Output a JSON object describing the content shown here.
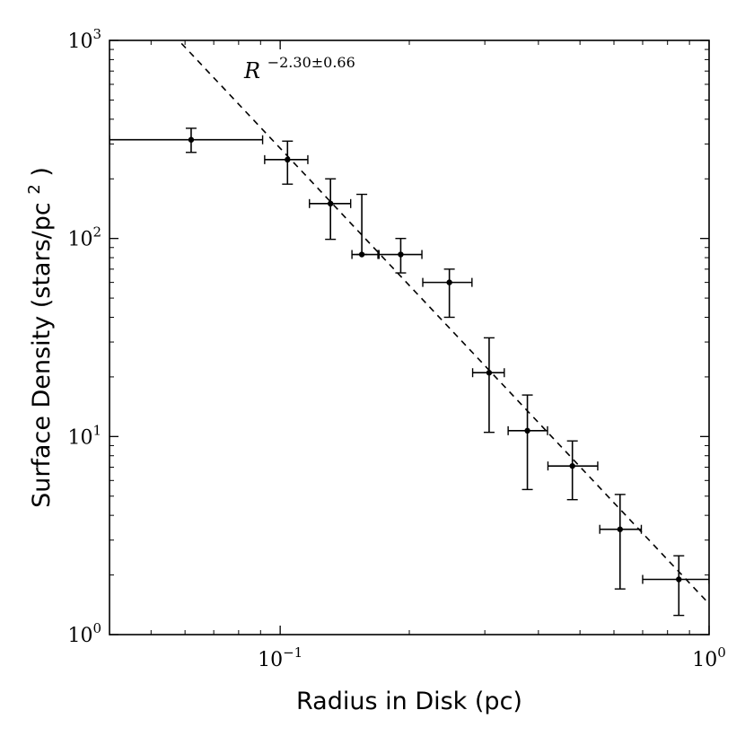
{
  "chart_data": {
    "type": "scatter",
    "xlabel": "Radius in Disk (pc)",
    "ylabel_main": "Surface Density (stars/pc",
    "ylabel_sup": "2",
    "ylabel_end": ")",
    "xscale": "log",
    "yscale": "log",
    "xlim": [
      0.04,
      1.0
    ],
    "ylim": [
      1,
      1000
    ],
    "grid": false,
    "x_ticks": [
      {
        "value": 0.1,
        "base": "10",
        "exp": "−1"
      },
      {
        "value": 1.0,
        "base": "10",
        "exp": "0"
      }
    ],
    "y_ticks": [
      {
        "value": 1,
        "base": "10",
        "exp": "0"
      },
      {
        "value": 10,
        "base": "10",
        "exp": "1"
      },
      {
        "value": 100,
        "base": "10",
        "exp": "2"
      },
      {
        "value": 1000,
        "base": "10",
        "exp": "3"
      }
    ],
    "points": [
      {
        "x": 0.062,
        "y": 315,
        "xlo": 0.04,
        "xhi": 0.091,
        "ylo": 272,
        "yhi": 360
      },
      {
        "x": 0.104,
        "y": 250,
        "xlo": 0.092,
        "xhi": 0.116,
        "ylo": 188,
        "yhi": 310
      },
      {
        "x": 0.131,
        "y": 150,
        "xlo": 0.117,
        "xhi": 0.146,
        "ylo": 99,
        "yhi": 200
      },
      {
        "x": 0.155,
        "y": 83,
        "xlo": 0.147,
        "xhi": 0.169,
        "ylo": 83,
        "yhi": 167
      },
      {
        "x": 0.191,
        "y": 83,
        "xlo": 0.17,
        "xhi": 0.214,
        "ylo": 67,
        "yhi": 100
      },
      {
        "x": 0.248,
        "y": 60,
        "xlo": 0.215,
        "xhi": 0.28,
        "ylo": 40,
        "yhi": 70
      },
      {
        "x": 0.307,
        "y": 21,
        "xlo": 0.281,
        "xhi": 0.333,
        "ylo": 10.5,
        "yhi": 31.5
      },
      {
        "x": 0.377,
        "y": 10.7,
        "xlo": 0.34,
        "xhi": 0.42,
        "ylo": 5.4,
        "yhi": 16.2
      },
      {
        "x": 0.48,
        "y": 7.1,
        "xlo": 0.421,
        "xhi": 0.55,
        "ylo": 4.8,
        "yhi": 9.5
      },
      {
        "x": 0.62,
        "y": 3.4,
        "xlo": 0.556,
        "xhi": 0.695,
        "ylo": 1.7,
        "yhi": 5.1
      },
      {
        "x": 0.85,
        "y": 1.9,
        "xlo": 0.7,
        "xhi": 1.0,
        "ylo": 1.25,
        "yhi": 2.5
      }
    ],
    "fit": {
      "style": "dashed",
      "exponent": -2.3,
      "x_from": 0.04,
      "x_to": 1.0,
      "y_at_x1": 1.43,
      "annotation_base": "R",
      "annotation_exp": "−2.30±0.66"
    }
  }
}
